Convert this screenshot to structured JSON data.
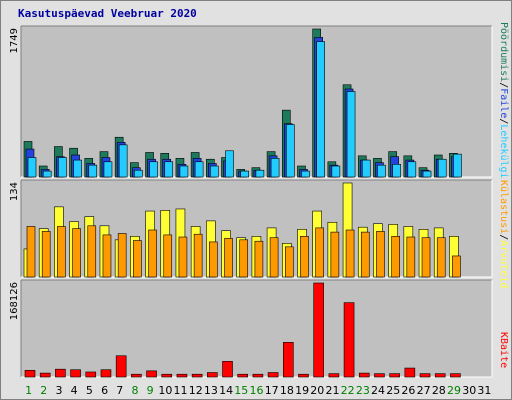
{
  "title": "Kasutuspäevad Veebruar 2020",
  "colors": {
    "hits": "#1e7a5c",
    "files": "#2244dd",
    "pages": "#22ccff",
    "visits": "#ff9900",
    "sites": "#ffff33",
    "kbytes": "#ff0000",
    "panel_bg": "#c0c0c0",
    "weekend_day": "#008000",
    "weekday": "#000000"
  },
  "legend": {
    "top": {
      "hits": "Pöördumisi",
      "files": "Faile",
      "pages": "Lehekülgi",
      "sep": "/"
    },
    "middle": {
      "visits": "Külastusi",
      "sites": "Arvuteid",
      "sep": "/"
    },
    "bottom": {
      "kbytes": "KBaite"
    }
  },
  "chart_data": {
    "type": "bar",
    "categories": [
      "1",
      "2",
      "3",
      "4",
      "5",
      "6",
      "7",
      "8",
      "9",
      "10",
      "11",
      "12",
      "13",
      "14",
      "15",
      "16",
      "17",
      "18",
      "19",
      "20",
      "21",
      "22",
      "23",
      "24",
      "25",
      "26",
      "27",
      "28",
      "29",
      "30",
      "31"
    ],
    "weekend_days": [
      "1",
      "2",
      "8",
      "9",
      "15",
      "16",
      "22",
      "23",
      "29"
    ],
    "panels": [
      {
        "name": "top",
        "ymax_label": "1749",
        "ylim": [
          0,
          1749
        ],
        "series": [
          {
            "name": "Pöördumisi",
            "values": [
              420,
              130,
              360,
              340,
              220,
              300,
              470,
              170,
              290,
              280,
              220,
              290,
              210,
              230,
              90,
              110,
              300,
              790,
              130,
              1749,
              180,
              1090,
              250,
              220,
              300,
              250,
              110,
              260,
              280,
              0,
              0
            ]
          },
          {
            "name": "Faile",
            "values": [
              330,
              90,
              240,
              260,
              160,
              230,
              410,
              110,
              210,
              210,
              150,
              220,
              160,
              190,
              70,
              80,
              250,
              630,
              90,
              1650,
              140,
              1040,
              200,
              170,
              240,
              200,
              80,
              210,
              240,
              0,
              0
            ]
          },
          {
            "name": "Lehekülgi",
            "values": [
              230,
              70,
              230,
              200,
              140,
              180,
              380,
              80,
              180,
              180,
              130,
              180,
              130,
              310,
              70,
              80,
              220,
              620,
              70,
              1600,
              130,
              1010,
              200,
              140,
              150,
              180,
              70,
              210,
              270,
              0,
              0
            ]
          }
        ]
      },
      {
        "name": "middle",
        "ymax_label": "134",
        "ylim": [
          0,
          134
        ],
        "series": [
          {
            "name": "Arvuteid",
            "values": [
              40,
              69,
              100,
              79,
              86,
              73,
              53,
              58,
              94,
              95,
              97,
              72,
              80,
              66,
              56,
              58,
              70,
              48,
              68,
              94,
              78,
              134,
              71,
              76,
              75,
              72,
              68,
              70,
              58,
              0,
              0
            ]
          },
          {
            "name": "Külastusi",
            "values": [
              72,
              65,
              72,
              69,
              73,
              60,
              62,
              52,
              67,
              60,
              57,
              61,
              50,
              55,
              53,
              51,
              56,
              43,
              58,
              70,
              64,
              67,
              64,
              65,
              58,
              57,
              56,
              56,
              30,
              0,
              0
            ]
          }
        ]
      },
      {
        "name": "bottom",
        "ymax_label": "168126",
        "ylim": [
          0,
          168126
        ],
        "series": [
          {
            "name": "KBaite",
            "values": [
              12000,
              7000,
              14000,
              13000,
              9000,
              13000,
              38000,
              5000,
              11000,
              5000,
              5000,
              5000,
              8000,
              28000,
              5000,
              5000,
              8000,
              62000,
              5000,
              168126,
              6000,
              133000,
              7000,
              6000,
              6000,
              16000,
              6000,
              6000,
              6000,
              0,
              0
            ]
          }
        ]
      }
    ]
  }
}
